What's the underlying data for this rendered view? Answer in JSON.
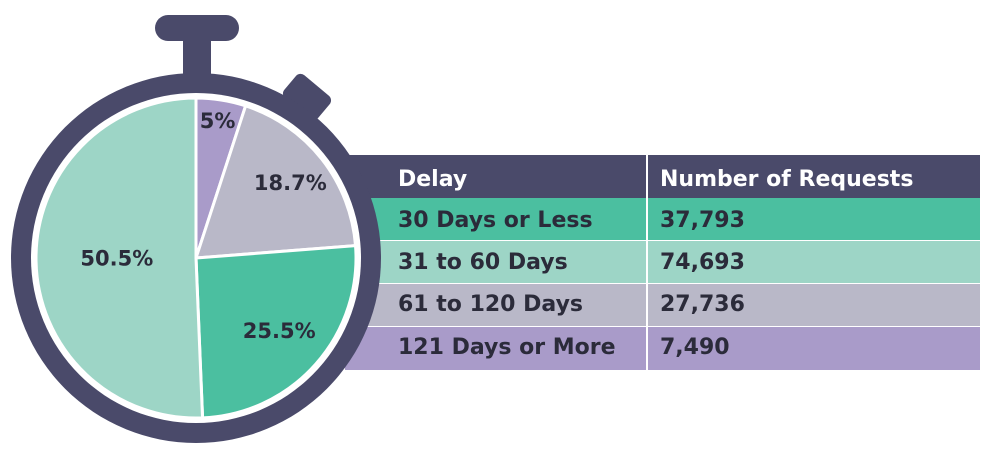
{
  "chart_data": {
    "type": "pie",
    "values": [
      5,
      18.7,
      25.5,
      50.5
    ],
    "value_labels": [
      "5%",
      "18.7%",
      "25.5%",
      "50.5%"
    ],
    "colors": [
      "#a99bc9",
      "#b9b8c8",
      "#4bbfa0",
      "#9dd5c6"
    ]
  },
  "table": {
    "header": [
      "Delay",
      "Number of Requests"
    ],
    "rows": [
      [
        "30 Days or Less",
        "37,793"
      ],
      [
        "31 to 60 Days",
        "74,693"
      ],
      [
        "61 to 120 Days",
        "27,736"
      ],
      [
        "121 Days or More",
        "7,490"
      ]
    ]
  }
}
